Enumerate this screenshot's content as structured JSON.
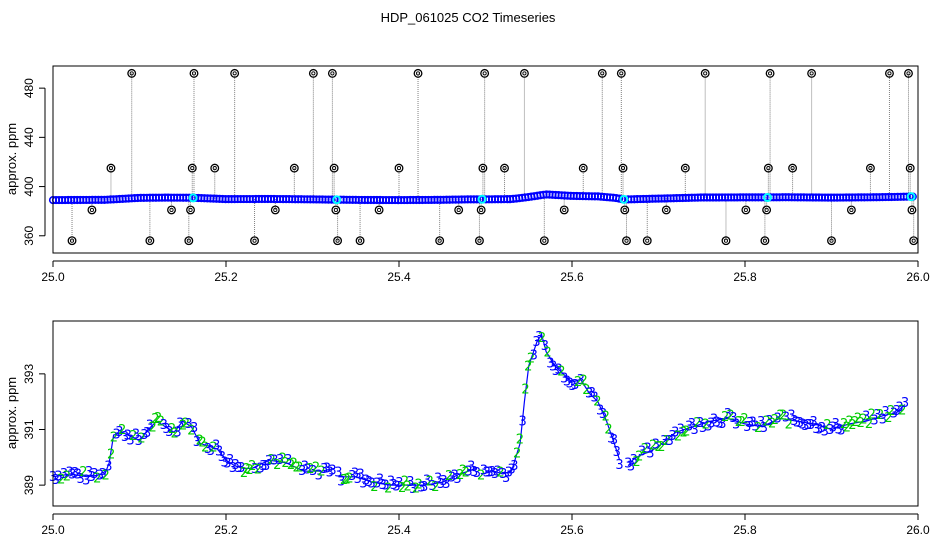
{
  "figure": {
    "title": "HDP_061025  CO2 Timeseries"
  },
  "chart_data": [
    {
      "type": "scatter",
      "panel": "top",
      "xlabel": "",
      "ylabel": "approx. ppm",
      "xlim": [
        25.0,
        26.0
      ],
      "ylim": [
        346,
        498
      ],
      "x_ticks": [
        25.0,
        25.2,
        25.4,
        25.6,
        25.8,
        26.0
      ],
      "x_tick_labels": [
        "25.0",
        "25.2",
        "25.4",
        "25.6",
        "25.8",
        "26.0"
      ],
      "y_ticks": [
        360,
        400,
        440,
        480
      ],
      "y_tick_labels": [
        "360",
        "400",
        "440",
        "480"
      ],
      "colors": {
        "main": "#0000ff",
        "flag": "#00ffff",
        "outlier": "#000000",
        "spike_line": "#808080"
      },
      "baseline": [
        [
          25.0,
          389.0
        ],
        [
          25.06,
          389.2
        ],
        [
          25.1,
          390.8
        ],
        [
          25.13,
          391.0
        ],
        [
          25.16,
          390.9
        ],
        [
          25.2,
          389.8
        ],
        [
          25.25,
          389.9
        ],
        [
          25.3,
          389.6
        ],
        [
          25.33,
          389.3
        ],
        [
          25.36,
          389.1
        ],
        [
          25.4,
          389.0
        ],
        [
          25.45,
          389.2
        ],
        [
          25.48,
          389.6
        ],
        [
          25.5,
          389.6
        ],
        [
          25.53,
          389.8
        ],
        [
          25.55,
          391.5
        ],
        [
          25.57,
          393.6
        ],
        [
          25.6,
          392.4
        ],
        [
          25.63,
          392.0
        ],
        [
          25.65,
          390.8
        ],
        [
          25.66,
          389.5
        ],
        [
          25.7,
          390.2
        ],
        [
          25.75,
          391.1
        ],
        [
          25.8,
          391.2
        ],
        [
          25.85,
          391.3
        ],
        [
          25.9,
          391.0
        ],
        [
          25.95,
          391.3
        ],
        [
          25.99,
          391.8
        ]
      ],
      "outliers": [
        {
          "x": 25.022,
          "y": 356
        },
        {
          "x": 25.045,
          "y": 381
        },
        {
          "x": 25.067,
          "y": 415
        },
        {
          "x": 25.091,
          "y": 492
        },
        {
          "x": 25.112,
          "y": 356
        },
        {
          "x": 25.137,
          "y": 381
        },
        {
          "x": 25.157,
          "y": 356
        },
        {
          "x": 25.159,
          "y": 381
        },
        {
          "x": 25.161,
          "y": 415
        },
        {
          "x": 25.163,
          "y": 492
        },
        {
          "x": 25.187,
          "y": 415
        },
        {
          "x": 25.21,
          "y": 492
        },
        {
          "x": 25.233,
          "y": 356
        },
        {
          "x": 25.257,
          "y": 381
        },
        {
          "x": 25.279,
          "y": 415
        },
        {
          "x": 25.301,
          "y": 492
        },
        {
          "x": 25.323,
          "y": 492
        },
        {
          "x": 25.325,
          "y": 415
        },
        {
          "x": 25.327,
          "y": 381
        },
        {
          "x": 25.329,
          "y": 356
        },
        {
          "x": 25.355,
          "y": 356
        },
        {
          "x": 25.377,
          "y": 381
        },
        {
          "x": 25.4,
          "y": 415
        },
        {
          "x": 25.422,
          "y": 492
        },
        {
          "x": 25.447,
          "y": 356
        },
        {
          "x": 25.469,
          "y": 381
        },
        {
          "x": 25.493,
          "y": 356
        },
        {
          "x": 25.495,
          "y": 381
        },
        {
          "x": 25.497,
          "y": 415
        },
        {
          "x": 25.499,
          "y": 492
        },
        {
          "x": 25.522,
          "y": 415
        },
        {
          "x": 25.545,
          "y": 492
        },
        {
          "x": 25.568,
          "y": 356
        },
        {
          "x": 25.591,
          "y": 381
        },
        {
          "x": 25.613,
          "y": 415
        },
        {
          "x": 25.635,
          "y": 492
        },
        {
          "x": 25.657,
          "y": 492
        },
        {
          "x": 25.659,
          "y": 415
        },
        {
          "x": 25.661,
          "y": 381
        },
        {
          "x": 25.663,
          "y": 356
        },
        {
          "x": 25.687,
          "y": 356
        },
        {
          "x": 25.709,
          "y": 381
        },
        {
          "x": 25.731,
          "y": 415
        },
        {
          "x": 25.754,
          "y": 492
        },
        {
          "x": 25.778,
          "y": 356
        },
        {
          "x": 25.801,
          "y": 381
        },
        {
          "x": 25.823,
          "y": 356
        },
        {
          "x": 25.825,
          "y": 381
        },
        {
          "x": 25.827,
          "y": 415
        },
        {
          "x": 25.829,
          "y": 492
        },
        {
          "x": 25.855,
          "y": 415
        },
        {
          "x": 25.877,
          "y": 492
        },
        {
          "x": 25.9,
          "y": 356
        },
        {
          "x": 25.923,
          "y": 381
        },
        {
          "x": 25.945,
          "y": 415
        },
        {
          "x": 25.967,
          "y": 492
        },
        {
          "x": 25.989,
          "y": 492
        },
        {
          "x": 25.991,
          "y": 415
        },
        {
          "x": 25.993,
          "y": 381
        },
        {
          "x": 25.995,
          "y": 356
        }
      ],
      "flagged": [
        {
          "x": 25.162,
          "y": 390.8
        },
        {
          "x": 25.328,
          "y": 389.3
        },
        {
          "x": 25.496,
          "y": 389.7
        },
        {
          "x": 25.66,
          "y": 389.6
        },
        {
          "x": 25.826,
          "y": 391.1
        },
        {
          "x": 25.992,
          "y": 391.8
        }
      ]
    },
    {
      "type": "scatter",
      "panel": "bottom",
      "xlabel": "",
      "ylabel": "approx. ppm",
      "xlim": [
        25.0,
        26.0
      ],
      "ylim": [
        388.25,
        394.9
      ],
      "x_ticks": [
        25.0,
        25.2,
        25.4,
        25.6,
        25.8,
        26.0
      ],
      "x_tick_labels": [
        "25.0",
        "25.2",
        "25.4",
        "25.6",
        "25.8",
        "26.0"
      ],
      "y_ticks": [
        389,
        391,
        393
      ],
      "y_tick_labels": [
        "389",
        "391",
        "393"
      ],
      "point_labels": [
        "2",
        "3"
      ],
      "colors": {
        "2": "#00cc00",
        "3": "#0000ff",
        "line": "#0000ff"
      },
      "segments": [
        [
          [
            25.0,
            389.3
          ],
          [
            25.02,
            389.4
          ],
          [
            25.04,
            389.3
          ],
          [
            25.06,
            389.4
          ],
          [
            25.065,
            389.8
          ],
          [
            25.07,
            390.8
          ],
          [
            25.08,
            390.9
          ],
          [
            25.1,
            390.6
          ],
          [
            25.11,
            391.0
          ],
          [
            25.12,
            391.3
          ],
          [
            25.13,
            391.1
          ],
          [
            25.14,
            390.9
          ],
          [
            25.15,
            391.3
          ],
          [
            25.16,
            391.1
          ],
          [
            25.17,
            390.5
          ],
          [
            25.18,
            390.4
          ],
          [
            25.19,
            390.3
          ],
          [
            25.2,
            389.9
          ],
          [
            25.21,
            389.7
          ],
          [
            25.22,
            389.6
          ],
          [
            25.23,
            389.6
          ],
          [
            25.25,
            389.9
          ],
          [
            25.27,
            389.8
          ],
          [
            25.29,
            389.5
          ],
          [
            25.31,
            389.5
          ],
          [
            25.326,
            389.6
          ]
        ],
        [
          [
            25.33,
            389.3
          ],
          [
            25.35,
            389.3
          ],
          [
            25.37,
            389.1
          ],
          [
            25.39,
            389.0
          ],
          [
            25.41,
            389.0
          ],
          [
            25.43,
            389.0
          ],
          [
            25.45,
            389.1
          ],
          [
            25.47,
            389.4
          ],
          [
            25.49,
            389.6
          ]
        ],
        [
          [
            25.495,
            389.4
          ],
          [
            25.51,
            389.5
          ],
          [
            25.52,
            389.4
          ],
          [
            25.53,
            389.5
          ],
          [
            25.54,
            390.5
          ],
          [
            25.545,
            392.0
          ],
          [
            25.55,
            393.3
          ],
          [
            25.56,
            394.2
          ],
          [
            25.565,
            394.4
          ],
          [
            25.57,
            393.8
          ],
          [
            25.58,
            393.3
          ],
          [
            25.59,
            393.0
          ],
          [
            25.6,
            392.7
          ],
          [
            25.61,
            392.8
          ],
          [
            25.62,
            392.3
          ],
          [
            25.63,
            392.0
          ],
          [
            25.64,
            391.3
          ],
          [
            25.65,
            390.4
          ],
          [
            25.655,
            389.9
          ]
        ],
        [
          [
            25.665,
            389.7
          ],
          [
            25.67,
            389.9
          ],
          [
            25.68,
            390.1
          ],
          [
            25.69,
            390.2
          ],
          [
            25.7,
            390.4
          ],
          [
            25.72,
            390.9
          ],
          [
            25.74,
            391.1
          ],
          [
            25.76,
            391.3
          ],
          [
            25.78,
            391.4
          ],
          [
            25.8,
            391.2
          ],
          [
            25.82,
            391.1
          ],
          [
            25.84,
            391.4
          ],
          [
            25.86,
            391.3
          ],
          [
            25.88,
            391.2
          ],
          [
            25.9,
            391.0
          ],
          [
            25.92,
            391.2
          ],
          [
            25.94,
            391.3
          ],
          [
            25.96,
            391.5
          ],
          [
            25.975,
            391.6
          ],
          [
            25.985,
            391.9
          ]
        ]
      ]
    }
  ]
}
